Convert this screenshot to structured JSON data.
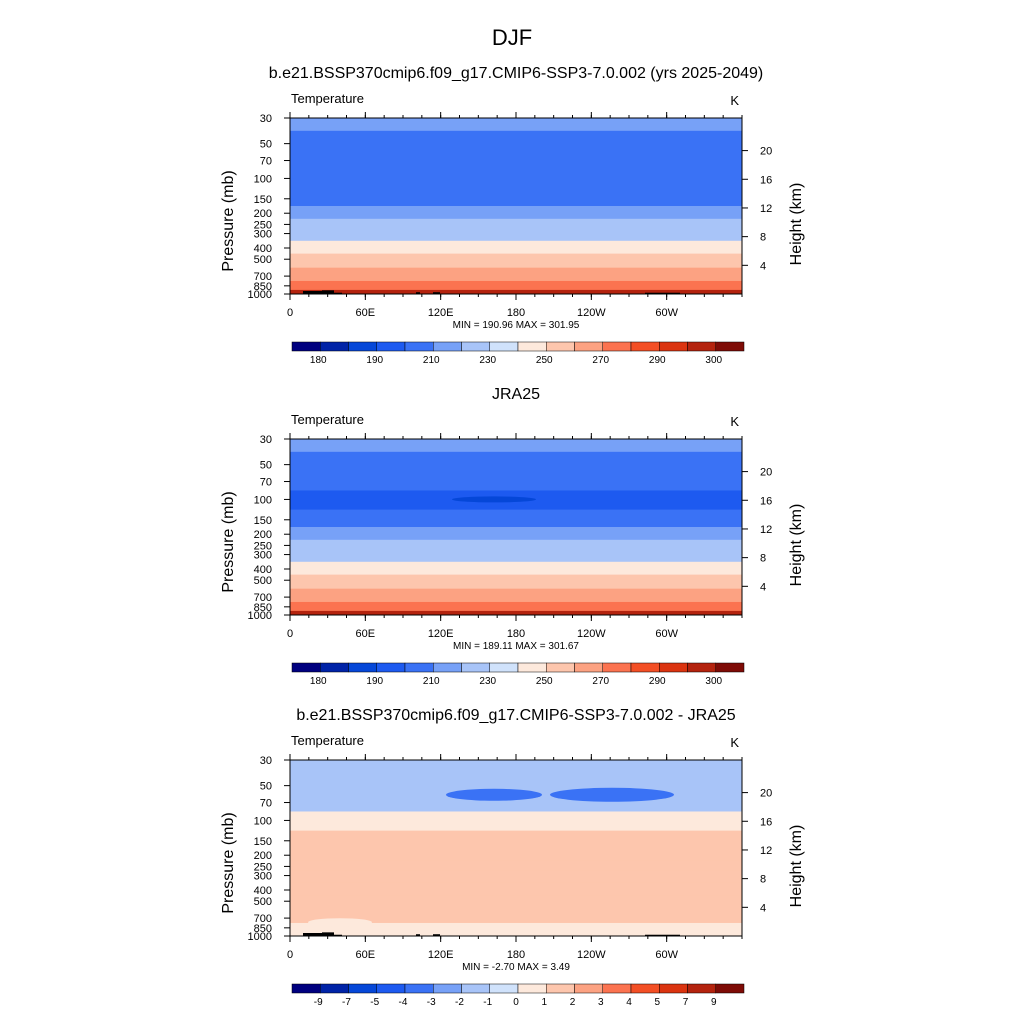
{
  "page": {
    "title": "DJF"
  },
  "colors": {
    "temperature_scale": [
      "#00007f",
      "#0023a7",
      "#0547d8",
      "#1d5af0",
      "#3a72f5",
      "#77a1f7",
      "#a8c4f8",
      "#d0e2fb",
      "#fde9dc",
      "#fdc6ad",
      "#fca282",
      "#fb7350",
      "#f34f25",
      "#db3410",
      "#b4230e",
      "#7e0b06"
    ],
    "difference_scale": [
      "#00007f",
      "#0023a7",
      "#0547d8",
      "#1d5af0",
      "#3a72f5",
      "#77a1f7",
      "#a8c4f8",
      "#d0e2fb",
      "#fde9dc",
      "#fdc6ad",
      "#fca282",
      "#fb7350",
      "#f34f25",
      "#db3410",
      "#b4230e",
      "#7e0b06"
    ],
    "orography": "#000000"
  },
  "chart_data": [
    {
      "type": "heatmap",
      "title": "b.e21.BSSP370cmip6.f09_g17.CMIP6-SSP3-7.0.002 (yrs 2025-2049)",
      "left_label": "Temperature",
      "right_label": "K",
      "ylabel": "Pressure (mb)",
      "ylabel_right": "Height (km)",
      "x_ticks": [
        "0",
        "60E",
        "120E",
        "180",
        "120W",
        "60W"
      ],
      "y_ticks": [
        "30",
        "50",
        "70",
        "100",
        "150",
        "200",
        "250",
        "300",
        "400",
        "500",
        "700",
        "850",
        "1000"
      ],
      "y_ticks_right": [
        "20",
        "16",
        "12",
        "8",
        "4"
      ],
      "stats": "MIN = 190.96  MAX = 301.95",
      "colorbar_labels": [
        "180",
        "190",
        "210",
        "230",
        "250",
        "270",
        "290",
        "300"
      ],
      "pressure_levels": [
        30,
        50,
        70,
        100,
        150,
        200,
        250,
        300,
        400,
        500,
        700,
        850,
        1000
      ],
      "zonal_mean_temperature_K": [
        212,
        204,
        201,
        202,
        210,
        216,
        223,
        230,
        243,
        253,
        268,
        279,
        292
      ],
      "min": 190.96,
      "max": 301.95
    },
    {
      "type": "heatmap",
      "title": "JRA25",
      "left_label": "Temperature",
      "right_label": "K",
      "ylabel": "Pressure (mb)",
      "ylabel_right": "Height (km)",
      "x_ticks": [
        "0",
        "60E",
        "120E",
        "180",
        "120W",
        "60W"
      ],
      "y_ticks": [
        "30",
        "50",
        "70",
        "100",
        "150",
        "200",
        "250",
        "300",
        "400",
        "500",
        "700",
        "850",
        "1000"
      ],
      "y_ticks_right": [
        "20",
        "16",
        "12",
        "8",
        "4"
      ],
      "stats": "MIN = 189.11  MAX = 301.67",
      "colorbar_labels": [
        "180",
        "190",
        "210",
        "230",
        "250",
        "270",
        "290",
        "300"
      ],
      "pressure_levels": [
        30,
        50,
        70,
        100,
        150,
        200,
        250,
        300,
        400,
        500,
        700,
        850,
        1000
      ],
      "zonal_mean_temperature_K": [
        213,
        206,
        201,
        199,
        207,
        214,
        221,
        229,
        242,
        252,
        267,
        278,
        291
      ],
      "min": 189.11,
      "max": 301.67
    },
    {
      "type": "heatmap",
      "title": "b.e21.BSSP370cmip6.f09_g17.CMIP6-SSP3-7.0.002 - JRA25",
      "left_label": "Temperature",
      "right_label": "K",
      "ylabel": "Pressure (mb)",
      "ylabel_right": "Height (km)",
      "x_ticks": [
        "0",
        "60E",
        "120E",
        "180",
        "120W",
        "60W"
      ],
      "y_ticks": [
        "30",
        "50",
        "70",
        "100",
        "150",
        "200",
        "250",
        "300",
        "400",
        "500",
        "700",
        "850",
        "1000"
      ],
      "y_ticks_right": [
        "20",
        "16",
        "12",
        "8",
        "4"
      ],
      "stats": "MIN = -2.70  MAX =   3.49",
      "colorbar_labels": [
        "-9",
        "-7",
        "-5",
        "-4",
        "-3",
        "-2",
        "-1",
        "0",
        "1",
        "2",
        "3",
        "4",
        "5",
        "7",
        "9"
      ],
      "pressure_levels": [
        30,
        50,
        70,
        100,
        150,
        200,
        250,
        300,
        400,
        500,
        700,
        850,
        1000
      ],
      "zonal_mean_difference_K": [
        -1.4,
        -1.7,
        -1.3,
        0.6,
        1.6,
        1.8,
        1.7,
        1.6,
        1.6,
        1.7,
        1.5,
        0.7,
        0.5
      ],
      "min": -2.7,
      "max": 3.49
    }
  ]
}
